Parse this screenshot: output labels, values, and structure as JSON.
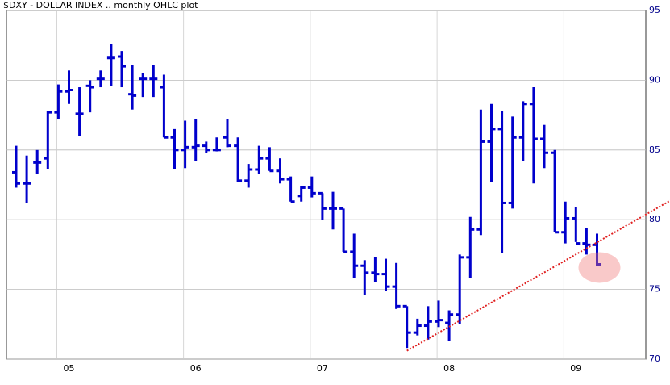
{
  "chart_data": {
    "type": "ohlc",
    "title": "$DXY - DOLLAR INDEX .. monthly OHLC plot",
    "categories": [
      null,
      null,
      null,
      null,
      null,
      "05",
      null,
      null,
      null,
      null,
      null,
      null,
      null,
      null,
      null,
      null,
      null,
      "06",
      null,
      null,
      null,
      null,
      null,
      null,
      null,
      null,
      null,
      null,
      null,
      "07",
      null,
      null,
      null,
      null,
      null,
      null,
      null,
      null,
      null,
      null,
      null,
      "08",
      null,
      null,
      null,
      null,
      null,
      null,
      null,
      null,
      null,
      null,
      null,
      "09",
      null,
      null
    ],
    "open": [
      83.4,
      82.6,
      84.1,
      84.4,
      87.7,
      89.2,
      87.6,
      89.6,
      90.1,
      91.6,
      91.7,
      89.0,
      90.1,
      90.1,
      89.5,
      85.9,
      85.0,
      85.2,
      85.3,
      85.0,
      85.9,
      85.3,
      82.8,
      83.6,
      84.4,
      83.5,
      82.9,
      81.7,
      82.3,
      81.9,
      80.8,
      80.8,
      77.7,
      76.7,
      76.2,
      76.1,
      75.2,
      73.8,
      71.9,
      72.4,
      72.7,
      72.6,
      73.2,
      77.3,
      79.3,
      85.6,
      86.5,
      81.2,
      85.9,
      88.3,
      85.8,
      84.8,
      79.1,
      80.1,
      78.3,
      78.2
    ],
    "high": [
      85.3,
      84.6,
      85.0,
      87.8,
      89.7,
      90.7,
      89.5,
      90.0,
      90.7,
      92.6,
      92.1,
      91.1,
      90.5,
      91.1,
      90.4,
      86.5,
      87.1,
      87.2,
      85.6,
      85.9,
      87.2,
      85.9,
      84.0,
      85.3,
      85.2,
      84.4,
      83.1,
      82.4,
      83.1,
      81.9,
      82.0,
      80.8,
      79.0,
      77.1,
      77.3,
      77.2,
      76.9,
      73.8,
      72.9,
      73.8,
      74.2,
      73.5,
      77.5,
      80.2,
      87.9,
      88.3,
      87.8,
      87.4,
      88.5,
      89.5,
      86.8,
      85.0,
      81.3,
      80.9,
      79.4,
      79.0
    ],
    "low": [
      82.3,
      81.2,
      83.3,
      83.6,
      87.2,
      88.3,
      86.0,
      87.7,
      89.5,
      89.6,
      89.5,
      87.9,
      88.8,
      88.8,
      85.9,
      83.6,
      83.7,
      84.2,
      84.8,
      84.9,
      85.2,
      82.7,
      82.3,
      83.3,
      83.5,
      82.6,
      81.3,
      81.3,
      81.6,
      80.0,
      79.3,
      77.7,
      75.8,
      74.6,
      75.5,
      74.9,
      73.6,
      70.8,
      71.7,
      71.4,
      72.3,
      71.3,
      72.5,
      75.8,
      78.9,
      82.7,
      77.6,
      80.8,
      84.2,
      82.6,
      83.7,
      79.1,
      78.3,
      78.4,
      77.5,
      76.7
    ],
    "close": [
      82.6,
      82.6,
      84.1,
      87.7,
      89.2,
      89.3,
      87.6,
      89.5,
      90.1,
      91.6,
      91.0,
      88.9,
      90.1,
      90.1,
      85.9,
      85.0,
      85.2,
      85.3,
      85.0,
      85.0,
      85.3,
      82.8,
      83.6,
      84.4,
      83.5,
      82.9,
      81.3,
      82.3,
      81.9,
      80.8,
      80.8,
      77.7,
      76.7,
      76.2,
      76.1,
      75.2,
      73.8,
      71.9,
      72.4,
      72.7,
      72.8,
      73.2,
      77.3,
      79.3,
      85.6,
      86.5,
      81.2,
      85.9,
      88.3,
      85.8,
      84.8,
      79.1,
      80.1,
      78.3,
      78.2,
      76.8
    ],
    "color": "#0000cc",
    "ylim": [
      70,
      95
    ],
    "yticks": [
      70,
      75,
      80,
      85,
      90,
      95
    ],
    "grid": true,
    "trend_line": {
      "x": [
        37,
        62
      ],
      "values": [
        70.6,
        81.4
      ],
      "color": "#e02020"
    }
  }
}
